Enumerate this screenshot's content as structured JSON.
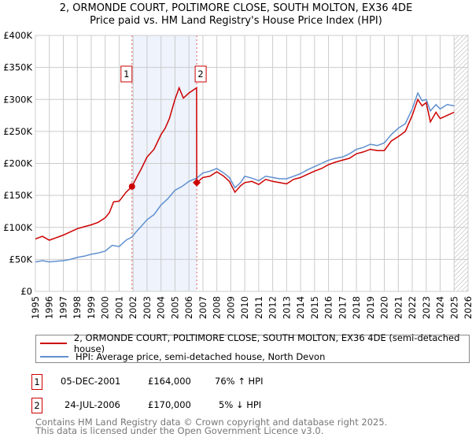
{
  "title": {
    "line1": "2, ORMONDE COURT, POLTIMORE CLOSE, SOUTH MOLTON, EX36 4DE",
    "line2": "Price paid vs. HM Land Registry's House Price Index (HPI)"
  },
  "chart_data": {
    "type": "line",
    "xlim": [
      1995,
      2026
    ],
    "ylim": [
      0,
      400000
    ],
    "yticks": [
      0,
      50000,
      100000,
      150000,
      200000,
      250000,
      300000,
      350000,
      400000
    ],
    "ytick_labels": [
      "£0",
      "£50K",
      "£100K",
      "£150K",
      "£200K",
      "£250K",
      "£300K",
      "£350K",
      "£400K"
    ],
    "xticks": [
      1995,
      1996,
      1997,
      1998,
      1999,
      2000,
      2001,
      2002,
      2003,
      2004,
      2005,
      2006,
      2007,
      2008,
      2009,
      2010,
      2011,
      2012,
      2013,
      2014,
      2015,
      2016,
      2017,
      2018,
      2019,
      2020,
      2021,
      2022,
      2023,
      2024,
      2025,
      2026
    ],
    "grid": true,
    "shaded_range": [
      2001.92,
      2006.56
    ],
    "hatched_from": 2025.0,
    "series": [
      {
        "name": "2, ORMONDE COURT, POLTIMORE CLOSE, SOUTH MOLTON, EX36 4DE (semi-detached house)",
        "color": "#cc0000",
        "x": [
          1995,
          1995.5,
          1996,
          1996.5,
          1997,
          1997.5,
          1998,
          1998.5,
          1999,
          1999.5,
          2000,
          2000.3,
          2000.6,
          2001,
          2001.5,
          2001.92,
          2002.3,
          2002.6,
          2003,
          2003.5,
          2004,
          2004.3,
          2004.6,
          2005,
          2005.3,
          2005.6,
          2006,
          2006.4,
          2006.55,
          2006.56,
          2007,
          2007.5,
          2008,
          2008.5,
          2008.9,
          2009.3,
          2009.7,
          2010,
          2010.5,
          2011,
          2011.5,
          2012,
          2012.5,
          2013,
          2013.5,
          2014,
          2014.5,
          2015,
          2015.5,
          2016,
          2016.5,
          2017,
          2017.5,
          2018,
          2018.5,
          2019,
          2019.5,
          2020,
          2020.5,
          2021,
          2021.5,
          2022,
          2022.4,
          2022.7,
          2023,
          2023.3,
          2023.7,
          2024,
          2024.5,
          2025
        ],
        "y": [
          82000,
          86000,
          80000,
          84000,
          88000,
          93000,
          98000,
          101000,
          104000,
          108000,
          115000,
          123000,
          140000,
          141000,
          155000,
          164000,
          180000,
          192000,
          210000,
          222000,
          245000,
          255000,
          270000,
          300000,
          318000,
          302000,
          310000,
          316000,
          318000,
          170000,
          178000,
          180000,
          187000,
          180000,
          172000,
          155000,
          165000,
          170000,
          172000,
          167000,
          175000,
          172000,
          170000,
          168000,
          175000,
          178000,
          183000,
          188000,
          192000,
          198000,
          202000,
          205000,
          208000,
          215000,
          218000,
          222000,
          220000,
          220000,
          235000,
          242000,
          250000,
          275000,
          300000,
          290000,
          295000,
          265000,
          280000,
          270000,
          275000,
          280000
        ]
      },
      {
        "name": "HPI: Average price, semi-detached house, North Devon",
        "color": "#6090d0",
        "x": [
          1995,
          1995.5,
          1996,
          1996.5,
          1997,
          1997.5,
          1998,
          1998.5,
          1999,
          1999.5,
          2000,
          2000.5,
          2001,
          2001.5,
          2001.92,
          2002.3,
          2002.6,
          2003,
          2003.5,
          2004,
          2004.5,
          2005,
          2005.5,
          2006,
          2006.56,
          2007,
          2007.5,
          2008,
          2008.5,
          2008.9,
          2009.3,
          2009.7,
          2010,
          2010.5,
          2011,
          2011.5,
          2012,
          2012.5,
          2013,
          2013.5,
          2014,
          2014.5,
          2015,
          2015.5,
          2016,
          2016.5,
          2017,
          2017.5,
          2018,
          2018.5,
          2019,
          2019.5,
          2020,
          2020.5,
          2021,
          2021.5,
          2022,
          2022.4,
          2022.7,
          2023,
          2023.3,
          2023.7,
          2024,
          2024.5,
          2025
        ],
        "y": [
          46000,
          48000,
          46000,
          47000,
          48000,
          50000,
          53000,
          55000,
          58000,
          60000,
          63000,
          72000,
          70000,
          80000,
          85000,
          95000,
          102000,
          112000,
          120000,
          135000,
          145000,
          158000,
          164000,
          172000,
          177000,
          185000,
          188000,
          192000,
          185000,
          178000,
          162000,
          170000,
          180000,
          177000,
          173000,
          180000,
          178000,
          176000,
          176000,
          180000,
          184000,
          190000,
          195000,
          200000,
          205000,
          208000,
          210000,
          215000,
          222000,
          225000,
          230000,
          228000,
          232000,
          245000,
          255000,
          262000,
          285000,
          310000,
          298000,
          300000,
          282000,
          292000,
          285000,
          292000,
          290000
        ]
      }
    ],
    "sales": [
      {
        "label": "1",
        "x": 2001.92,
        "price": 164000
      },
      {
        "label": "2",
        "x": 2006.56,
        "price": 170000
      }
    ]
  },
  "legend": {
    "property": "2, ORMONDE COURT, POLTIMORE CLOSE, SOUTH MOLTON, EX36 4DE (semi-detached house)",
    "hpi": "HPI: Average price, semi-detached house, North Devon"
  },
  "transactions": [
    {
      "num": "1",
      "date": "05-DEC-2001",
      "price": "£164,000",
      "hpi": "76% ↑ HPI"
    },
    {
      "num": "2",
      "date": "24-JUL-2006",
      "price": "£170,000",
      "hpi": "5% ↓ HPI"
    }
  ],
  "footer": {
    "line1": "Contains HM Land Registry data © Crown copyright and database right 2025.",
    "line2": "This data is licensed under the Open Government Licence v3.0."
  }
}
